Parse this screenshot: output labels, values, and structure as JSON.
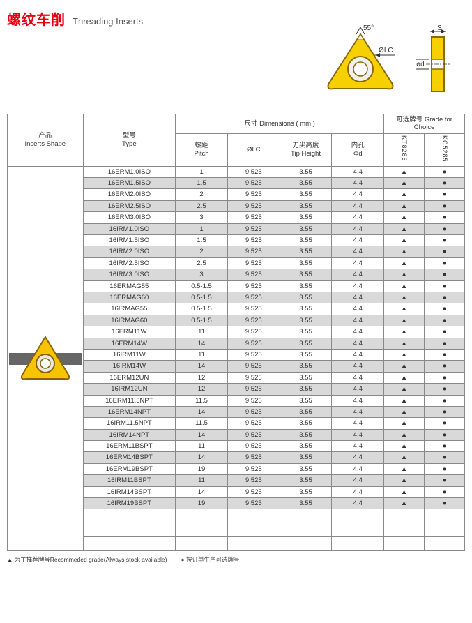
{
  "title": {
    "cn": "螺纹车削",
    "en": "Threading Inserts"
  },
  "diagram": {
    "angle": "55°",
    "ic": "ØI.C",
    "s": "S",
    "d": "ød"
  },
  "headers": {
    "shape_cn": "产品",
    "shape_en": "Inserts Shape",
    "type_cn": "型号",
    "type_en": "Type",
    "dim_cn": "尺寸 Dimensions ( mm )",
    "grade_cn": "可选牌号 Grade for Choice",
    "pitch_cn": "螺距",
    "pitch_en": "Pitch",
    "ic": "ØI.C",
    "tip_cn": "刀尖高度",
    "tip_en": "Tip Height",
    "bore_cn": "内孔",
    "bore_en": "Φd",
    "g1": "KT8286",
    "g2": "KC5285"
  },
  "rows": [
    {
      "t": "16ERM1.0ISO",
      "p": "1",
      "ic": "9.525",
      "tip": "3.55",
      "d": "4.4",
      "g1": "▲",
      "g2": "●",
      "alt": false
    },
    {
      "t": "16ERM1.5ISO",
      "p": "1.5",
      "ic": "9.525",
      "tip": "3.55",
      "d": "4.4",
      "g1": "▲",
      "g2": "●",
      "alt": true
    },
    {
      "t": "16ERM2.0ISO",
      "p": "2",
      "ic": "9.525",
      "tip": "3.55",
      "d": "4.4",
      "g1": "▲",
      "g2": "●",
      "alt": false
    },
    {
      "t": "16ERM2.5ISO",
      "p": "2.5",
      "ic": "9.525",
      "tip": "3.55",
      "d": "4.4",
      "g1": "▲",
      "g2": "●",
      "alt": true
    },
    {
      "t": "16ERM3.0ISO",
      "p": "3",
      "ic": "9.525",
      "tip": "3.55",
      "d": "4.4",
      "g1": "▲",
      "g2": "●",
      "alt": false
    },
    {
      "t": "16IRM1.0ISO",
      "p": "1",
      "ic": "9.525",
      "tip": "3.55",
      "d": "4.4",
      "g1": "▲",
      "g2": "●",
      "alt": true
    },
    {
      "t": "16IRM1.5ISO",
      "p": "1.5",
      "ic": "9.525",
      "tip": "3.55",
      "d": "4.4",
      "g1": "▲",
      "g2": "●",
      "alt": false
    },
    {
      "t": "16IRM2.0ISO",
      "p": "2",
      "ic": "9.525",
      "tip": "3.55",
      "d": "4.4",
      "g1": "▲",
      "g2": "●",
      "alt": true
    },
    {
      "t": "16IRM2.5ISO",
      "p": "2.5",
      "ic": "9.525",
      "tip": "3.55",
      "d": "4.4",
      "g1": "▲",
      "g2": "●",
      "alt": false
    },
    {
      "t": "16IRM3.0ISO",
      "p": "3",
      "ic": "9.525",
      "tip": "3.55",
      "d": "4.4",
      "g1": "▲",
      "g2": "●",
      "alt": true
    },
    {
      "t": "16ERMAG55",
      "p": "0.5-1.5",
      "ic": "9.525",
      "tip": "3.55",
      "d": "4.4",
      "g1": "▲",
      "g2": "●",
      "alt": false
    },
    {
      "t": "16ERMAG60",
      "p": "0.5-1.5",
      "ic": "9.525",
      "tip": "3.55",
      "d": "4.4",
      "g1": "▲",
      "g2": "●",
      "alt": true
    },
    {
      "t": "16IRMAG55",
      "p": "0.5-1.5",
      "ic": "9.525",
      "tip": "3.55",
      "d": "4.4",
      "g1": "▲",
      "g2": "●",
      "alt": false
    },
    {
      "t": "16IRMAG60",
      "p": "0.5-1.5",
      "ic": "9.525",
      "tip": "3.55",
      "d": "4.4",
      "g1": "▲",
      "g2": "●",
      "alt": true
    },
    {
      "t": "16ERM11W",
      "p": "11",
      "ic": "9.525",
      "tip": "3.55",
      "d": "4.4",
      "g1": "▲",
      "g2": "●",
      "alt": false
    },
    {
      "t": "16ERM14W",
      "p": "14",
      "ic": "9.525",
      "tip": "3.55",
      "d": "4.4",
      "g1": "▲",
      "g2": "●",
      "alt": true
    },
    {
      "t": "16IRM11W",
      "p": "11",
      "ic": "9.525",
      "tip": "3.55",
      "d": "4.4",
      "g1": "▲",
      "g2": "●",
      "alt": false
    },
    {
      "t": "16IRM14W",
      "p": "14",
      "ic": "9.525",
      "tip": "3.55",
      "d": "4.4",
      "g1": "▲",
      "g2": "●",
      "alt": true
    },
    {
      "t": "16ERM12UN",
      "p": "12",
      "ic": "9.525",
      "tip": "3.55",
      "d": "4.4",
      "g1": "▲",
      "g2": "●",
      "alt": false
    },
    {
      "t": "16IRM12UN",
      "p": "12",
      "ic": "9.525",
      "tip": "3.55",
      "d": "4.4",
      "g1": "▲",
      "g2": "●",
      "alt": true
    },
    {
      "t": "16ERM11.5NPT",
      "p": "11.5",
      "ic": "9.525",
      "tip": "3.55",
      "d": "4.4",
      "g1": "▲",
      "g2": "●",
      "alt": false
    },
    {
      "t": "16ERM14NPT",
      "p": "14",
      "ic": "9.525",
      "tip": "3.55",
      "d": "4.4",
      "g1": "▲",
      "g2": "●",
      "alt": true
    },
    {
      "t": "16IRM11.5NPT",
      "p": "11.5",
      "ic": "9.525",
      "tip": "3.55",
      "d": "4.4",
      "g1": "▲",
      "g2": "●",
      "alt": false
    },
    {
      "t": "16IRM14NPT",
      "p": "14",
      "ic": "9.525",
      "tip": "3.55",
      "d": "4.4",
      "g1": "▲",
      "g2": "●",
      "alt": true
    },
    {
      "t": "16ERM11BSPT",
      "p": "11",
      "ic": "9.525",
      "tip": "3.55",
      "d": "4.4",
      "g1": "▲",
      "g2": "●",
      "alt": false
    },
    {
      "t": "16ERM14BSPT",
      "p": "14",
      "ic": "9.525",
      "tip": "3.55",
      "d": "4.4",
      "g1": "▲",
      "g2": "●",
      "alt": true
    },
    {
      "t": "16ERM19BSPT",
      "p": "19",
      "ic": "9.525",
      "tip": "3.55",
      "d": "4.4",
      "g1": "▲",
      "g2": "●",
      "alt": false
    },
    {
      "t": "16IRM11BSPT",
      "p": "11",
      "ic": "9.525",
      "tip": "3.55",
      "d": "4.4",
      "g1": "▲",
      "g2": "●",
      "alt": true
    },
    {
      "t": "16IRM14BSPT",
      "p": "14",
      "ic": "9.525",
      "tip": "3.55",
      "d": "4.4",
      "g1": "▲",
      "g2": "●",
      "alt": false
    },
    {
      "t": "16IRM19BSPT",
      "p": "19",
      "ic": "9.525",
      "tip": "3.55",
      "d": "4.4",
      "g1": "▲",
      "g2": "●",
      "alt": true
    }
  ],
  "empty_rows": 3,
  "footer": {
    "t1": "▲ 为主推荐牌号Recommeded grade(Always stock available)",
    "t2": "● 按订单生产可选牌号"
  }
}
